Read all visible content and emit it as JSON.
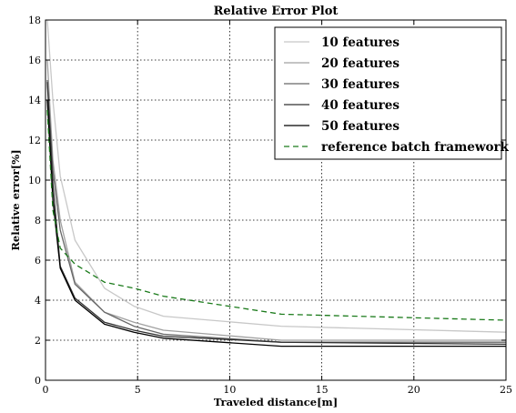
{
  "chart_data": {
    "type": "line",
    "title": "Relative Error Plot",
    "xlabel": "Traveled distance[m]",
    "ylabel": "Relative error[%]",
    "xlim": [
      0,
      25
    ],
    "ylim": [
      0,
      18
    ],
    "xticks": [
      0,
      5,
      10,
      15,
      20,
      25
    ],
    "yticks": [
      0,
      2,
      4,
      6,
      8,
      10,
      12,
      14,
      16,
      18
    ],
    "grid": true,
    "legend_position": "top-right",
    "series": [
      {
        "name": "10 features",
        "color": "#c8c8c8",
        "dash": "solid",
        "points": [
          [
            0.1,
            18
          ],
          [
            0.4,
            14
          ],
          [
            0.8,
            10.2
          ],
          [
            1.6,
            7
          ],
          [
            3.2,
            4.6
          ],
          [
            4.8,
            3.7
          ],
          [
            6.4,
            3.2
          ],
          [
            12.8,
            2.7
          ],
          [
            25,
            2.4
          ]
        ]
      },
      {
        "name": "20 features",
        "color": "#a0a0a0",
        "dash": "solid",
        "points": [
          [
            0.1,
            16
          ],
          [
            0.4,
            11
          ],
          [
            0.8,
            8
          ],
          [
            1.6,
            4.9
          ],
          [
            3.2,
            3.4
          ],
          [
            4.8,
            2.9
          ],
          [
            6.4,
            2.5
          ],
          [
            12.8,
            2.0
          ],
          [
            25,
            2.0
          ]
        ]
      },
      {
        "name": "30 features",
        "color": "#686868",
        "dash": "solid",
        "points": [
          [
            0.1,
            15
          ],
          [
            0.4,
            10.5
          ],
          [
            0.8,
            7.5
          ],
          [
            1.6,
            4.8
          ],
          [
            3.2,
            3.4
          ],
          [
            4.8,
            2.7
          ],
          [
            6.4,
            2.3
          ],
          [
            12.8,
            1.9
          ],
          [
            25,
            1.9
          ]
        ]
      },
      {
        "name": "40 features",
        "color": "#303030",
        "dash": "solid",
        "points": [
          [
            0.1,
            14.9
          ],
          [
            0.4,
            9.8
          ],
          [
            0.8,
            5.7
          ],
          [
            1.6,
            4.1
          ],
          [
            3.2,
            2.9
          ],
          [
            4.8,
            2.5
          ],
          [
            6.4,
            2.2
          ],
          [
            12.8,
            1.9
          ],
          [
            25,
            1.8
          ]
        ]
      },
      {
        "name": "50 features",
        "color": "#000000",
        "dash": "solid",
        "points": [
          [
            0.1,
            14
          ],
          [
            0.4,
            9
          ],
          [
            0.8,
            5.6
          ],
          [
            1.6,
            4.0
          ],
          [
            3.2,
            2.8
          ],
          [
            4.8,
            2.4
          ],
          [
            6.4,
            2.1
          ],
          [
            12.8,
            1.7
          ],
          [
            25,
            1.7
          ]
        ]
      },
      {
        "name": "reference batch framework",
        "color": "#1a7a1a",
        "dash": "dashed",
        "points": [
          [
            0.1,
            13.5
          ],
          [
            0.4,
            8.5
          ],
          [
            0.8,
            6.6
          ],
          [
            1.6,
            5.8
          ],
          [
            3.2,
            4.9
          ],
          [
            4.8,
            4.6
          ],
          [
            6.4,
            4.2
          ],
          [
            12.8,
            3.3
          ],
          [
            25,
            3.0
          ]
        ]
      }
    ]
  }
}
